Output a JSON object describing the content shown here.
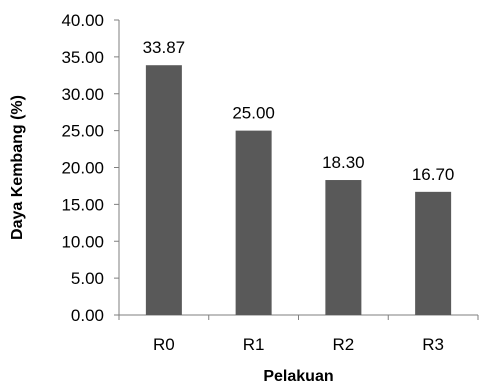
{
  "chart_data": {
    "type": "bar",
    "categories": [
      "R0",
      "R1",
      "R2",
      "R3"
    ],
    "values": [
      33.87,
      25.0,
      18.3,
      16.7
    ],
    "data_labels": [
      "33.87",
      "25.00",
      "18.30",
      "16.70"
    ],
    "title": "",
    "xlabel": "Pelakuan",
    "ylabel": "Daya Kembang (%)",
    "ylim": [
      0,
      40
    ],
    "yticks": [
      0,
      5,
      10,
      15,
      20,
      25,
      30,
      35,
      40
    ],
    "ytick_labels": [
      "0.00",
      "5.00",
      "10.00",
      "15.00",
      "20.00",
      "25.00",
      "30.00",
      "35.00",
      "40.00"
    ],
    "grid": false,
    "legend": "none",
    "bar_color": "#595959"
  }
}
